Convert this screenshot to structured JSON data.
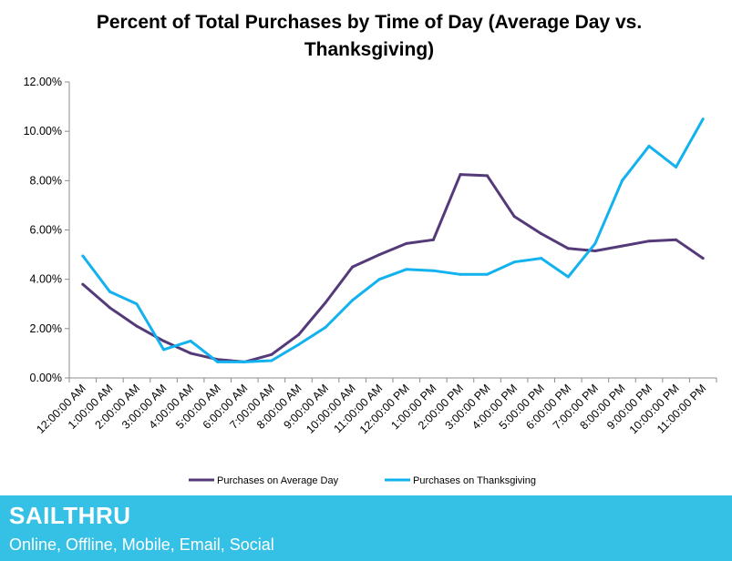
{
  "chart_data": {
    "type": "line",
    "title": "Percent of Total Purchases by Time of Day (Average Day vs. Thanksgiving)",
    "title_lines": [
      "Percent of Total Purchases by Time of Day (Average Day vs.",
      "Thanksgiving)"
    ],
    "xlabel": "",
    "ylabel": "",
    "ylim": [
      0,
      12
    ],
    "yticks": [
      "0.00%",
      "2.00%",
      "4.00%",
      "6.00%",
      "8.00%",
      "10.00%",
      "12.00%"
    ],
    "categories": [
      "12:00:00 AM",
      "1:00:00 AM",
      "2:00:00 AM",
      "3:00:00 AM",
      "4:00:00 AM",
      "5:00:00 AM",
      "6:00:00 AM",
      "7:00:00 AM",
      "8:00:00 AM",
      "9:00:00 AM",
      "10:00:00 AM",
      "11:00:00 AM",
      "12:00:00 PM",
      "1:00:00 PM",
      "2:00:00 PM",
      "3:00:00 PM",
      "4:00:00 PM",
      "5:00:00 PM",
      "6:00:00 PM",
      "7:00:00 PM",
      "8:00:00 PM",
      "9:00:00 PM",
      "10:00:00 PM",
      "11:00:00 PM"
    ],
    "series": [
      {
        "name": "Purchases on Average Day",
        "color": "#553a7a",
        "values": [
          3.8,
          2.85,
          2.1,
          1.5,
          1.0,
          0.75,
          0.65,
          0.95,
          1.75,
          3.05,
          4.5,
          5.0,
          5.45,
          5.6,
          8.25,
          8.2,
          6.55,
          5.85,
          5.25,
          5.15,
          5.35,
          5.55,
          5.6,
          4.85
        ]
      },
      {
        "name": "Purchases on Thanksgiving",
        "color": "#12b2ef",
        "values": [
          4.95,
          3.5,
          3.0,
          1.15,
          1.5,
          0.65,
          0.65,
          0.7,
          1.35,
          2.05,
          3.15,
          4.0,
          4.4,
          4.35,
          4.2,
          4.2,
          4.7,
          4.85,
          4.1,
          5.45,
          8.0,
          9.4,
          8.55,
          10.5
        ]
      }
    ],
    "legend_position": "bottom",
    "grid": false
  },
  "footer": {
    "brand": "SAILTHRU",
    "tagline": "Online, Offline, Mobile, Email, Social",
    "background": "#35c0e6"
  }
}
